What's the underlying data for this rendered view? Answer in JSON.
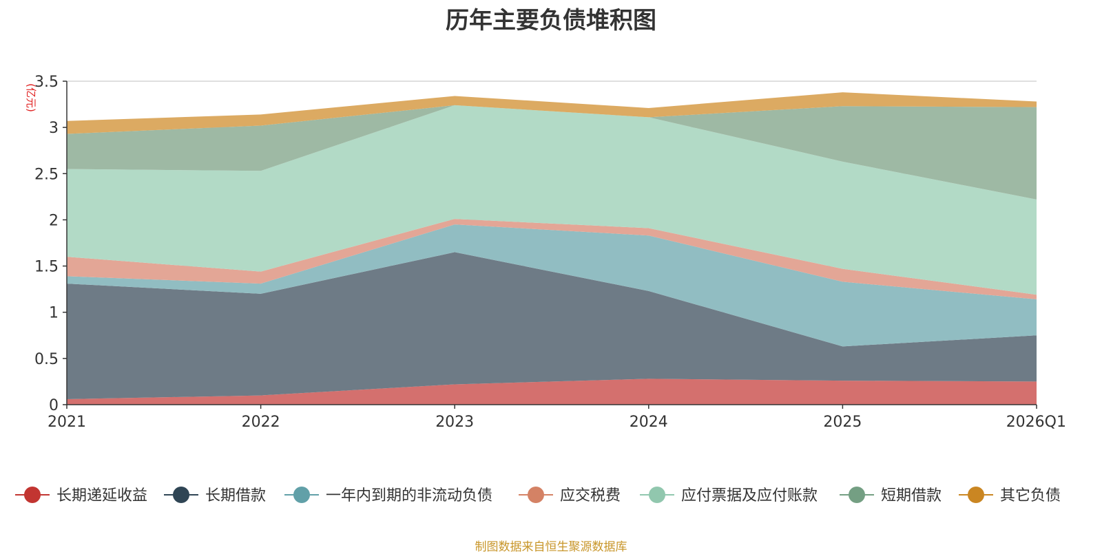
{
  "chart_data": {
    "type": "area",
    "stacked": true,
    "title": "历年主要负债堆积图",
    "unit_label": "(亿元)",
    "categories": [
      "2021",
      "2022",
      "2023",
      "2024",
      "2025",
      "2026Q1"
    ],
    "ylim": [
      0,
      3.5
    ],
    "yticks": [
      0,
      0.5,
      1,
      1.5,
      2,
      2.5,
      3,
      3.5
    ],
    "ytick_labels": [
      "0",
      "0.5",
      "1",
      "1.5",
      "2",
      "2.5",
      "3",
      "3.5"
    ],
    "grid": true,
    "legend_position": "bottom",
    "series": [
      {
        "name": "长期递延收益",
        "color": "#c23531",
        "fill": "#d4706e",
        "values": [
          0.06,
          0.1,
          0.22,
          0.28,
          0.26,
          0.25
        ]
      },
      {
        "name": "长期借款",
        "color": "#2f4554",
        "fill": "#6e7b86",
        "values": [
          1.25,
          1.1,
          1.43,
          0.95,
          0.37,
          0.5
        ]
      },
      {
        "name": "一年内到期的非流动负债",
        "color": "#61a0a8",
        "fill": "#91bdc2",
        "values": [
          0.08,
          0.11,
          0.3,
          0.6,
          0.7,
          0.39
        ]
      },
      {
        "name": "应交税费",
        "color": "#d48265",
        "fill": "#e3a696",
        "values": [
          0.21,
          0.13,
          0.06,
          0.08,
          0.14,
          0.05
        ]
      },
      {
        "name": "应付票据及应付账款",
        "color": "#91c7ae",
        "fill": "#b2dac6",
        "values": [
          0.95,
          1.09,
          1.23,
          1.2,
          1.16,
          1.03
        ]
      },
      {
        "name": "短期借款",
        "color": "#749f83",
        "fill": "#9eb9a4",
        "values": [
          0.38,
          0.49,
          0.0,
          0.0,
          0.6,
          1.0
        ]
      },
      {
        "name": "其它负债",
        "color": "#ca8622",
        "fill": "#dcaa62",
        "values": [
          0.14,
          0.12,
          0.1,
          0.1,
          0.15,
          0.06
        ]
      }
    ]
  },
  "footer": {
    "source": "制图数据来自恒生聚源数据库"
  }
}
